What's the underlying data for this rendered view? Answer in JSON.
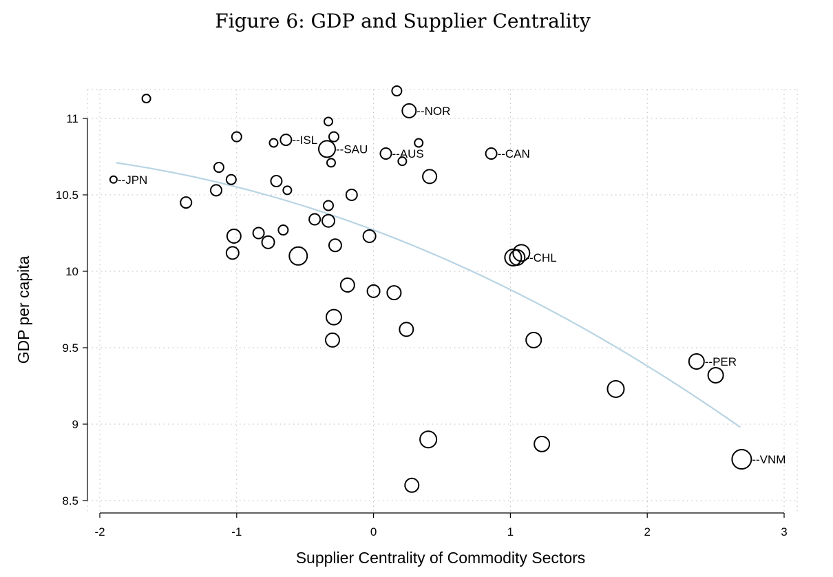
{
  "chart_data": {
    "type": "scatter",
    "title": "Figure 6: GDP and Supplier Centrality",
    "xlabel": "Supplier Centrality of Commodity Sectors",
    "ylabel": "GDP per capita",
    "xlim": [
      -2,
      3
    ],
    "ylim": [
      8.5,
      11
    ],
    "xticks": [
      "-2",
      "-1",
      "0",
      "1",
      "2",
      "3"
    ],
    "yticks": [
      "8.5",
      "9",
      "9.5",
      "10",
      "10.5",
      "11"
    ],
    "grid": true,
    "fit_color": "#b8d4e3",
    "fit_curve": {
      "type": "quadratic",
      "coef": [
        10.27,
        -0.336,
        -0.0543
      ],
      "x_range": [
        -1.88,
        2.68
      ]
    },
    "points": [
      {
        "x": -1.66,
        "y": 11.13,
        "s": 6
      },
      {
        "x": 0.17,
        "y": 11.18,
        "s": 7
      },
      {
        "x": 0.26,
        "y": 11.05,
        "s": 10,
        "label": "--NOR"
      },
      {
        "x": -0.33,
        "y": 10.98,
        "s": 6
      },
      {
        "x": -1.0,
        "y": 10.88,
        "s": 7
      },
      {
        "x": -0.73,
        "y": 10.84,
        "s": 6
      },
      {
        "x": -0.64,
        "y": 10.86,
        "s": 8,
        "label": "--ISL"
      },
      {
        "x": -0.29,
        "y": 10.88,
        "s": 7
      },
      {
        "x": -0.34,
        "y": 10.8,
        "s": 12,
        "label": "--SAU"
      },
      {
        "x": 0.09,
        "y": 10.77,
        "s": 8,
        "label": "--AUS"
      },
      {
        "x": 0.33,
        "y": 10.84,
        "s": 6
      },
      {
        "x": 0.21,
        "y": 10.72,
        "s": 6
      },
      {
        "x": -0.31,
        "y": 10.71,
        "s": 6
      },
      {
        "x": 0.86,
        "y": 10.77,
        "s": 8,
        "label": "--CAN"
      },
      {
        "x": -1.9,
        "y": 10.6,
        "s": 5,
        "label": "--JPN"
      },
      {
        "x": 0.41,
        "y": 10.62,
        "s": 10
      },
      {
        "x": -1.13,
        "y": 10.68,
        "s": 7
      },
      {
        "x": -1.04,
        "y": 10.6,
        "s": 7
      },
      {
        "x": -0.71,
        "y": 10.59,
        "s": 8
      },
      {
        "x": -0.63,
        "y": 10.53,
        "s": 6
      },
      {
        "x": -1.15,
        "y": 10.53,
        "s": 8
      },
      {
        "x": -1.37,
        "y": 10.45,
        "s": 8
      },
      {
        "x": -0.16,
        "y": 10.5,
        "s": 8
      },
      {
        "x": -0.33,
        "y": 10.43,
        "s": 7
      },
      {
        "x": -0.43,
        "y": 10.34,
        "s": 8
      },
      {
        "x": -0.33,
        "y": 10.33,
        "s": 9
      },
      {
        "x": -0.84,
        "y": 10.25,
        "s": 8
      },
      {
        "x": -0.66,
        "y": 10.27,
        "s": 7
      },
      {
        "x": -1.02,
        "y": 10.23,
        "s": 10
      },
      {
        "x": -0.77,
        "y": 10.19,
        "s": 9
      },
      {
        "x": -0.28,
        "y": 10.17,
        "s": 9
      },
      {
        "x": -0.03,
        "y": 10.23,
        "s": 9
      },
      {
        "x": -1.03,
        "y": 10.12,
        "s": 9
      },
      {
        "x": -0.55,
        "y": 10.1,
        "s": 13
      },
      {
        "x": 1.08,
        "y": 10.12,
        "s": 12
      },
      {
        "x": 1.02,
        "y": 10.09,
        "s": 12
      },
      {
        "x": 1.05,
        "y": 10.09,
        "s": 11,
        "label": "--CHL"
      },
      {
        "x": -0.19,
        "y": 9.91,
        "s": 10
      },
      {
        "x": 0.0,
        "y": 9.87,
        "s": 9
      },
      {
        "x": 0.15,
        "y": 9.86,
        "s": 10
      },
      {
        "x": -0.29,
        "y": 9.7,
        "s": 11
      },
      {
        "x": -0.3,
        "y": 9.55,
        "s": 10
      },
      {
        "x": 0.24,
        "y": 9.62,
        "s": 10
      },
      {
        "x": 1.17,
        "y": 9.55,
        "s": 11
      },
      {
        "x": 2.36,
        "y": 9.41,
        "s": 11,
        "label": "--PER"
      },
      {
        "x": 2.5,
        "y": 9.32,
        "s": 11
      },
      {
        "x": 1.77,
        "y": 9.23,
        "s": 12
      },
      {
        "x": 0.4,
        "y": 8.9,
        "s": 12
      },
      {
        "x": 1.23,
        "y": 8.87,
        "s": 11
      },
      {
        "x": 2.69,
        "y": 8.77,
        "s": 14,
        "label": "--VNM"
      },
      {
        "x": 0.28,
        "y": 8.6,
        "s": 10
      }
    ]
  }
}
